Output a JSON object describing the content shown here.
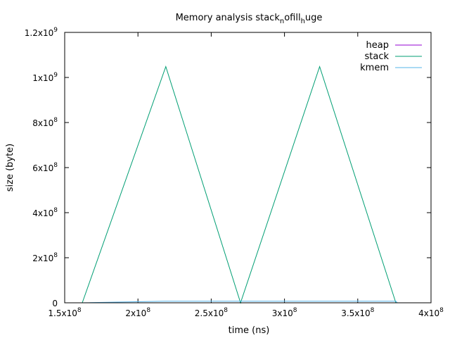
{
  "chart_data": {
    "type": "line",
    "title": {
      "main": "Memory analysis stack",
      "parts": [
        {
          "text": "Memory analysis stack",
          "shift": "base"
        },
        {
          "text": "n",
          "shift": "sub"
        },
        {
          "text": "ofill",
          "shift": "base"
        },
        {
          "text": "h",
          "shift": "sub"
        },
        {
          "text": "uge",
          "shift": "base"
        }
      ]
    },
    "xlabel": "time (ns)",
    "ylabel": "size (byte)",
    "xlim": [
      150000000,
      400000000
    ],
    "ylim": [
      0,
      1200000000
    ],
    "x_ticks": [
      {
        "value": 150000000,
        "mantissa": "1.5x10",
        "exp": "8"
      },
      {
        "value": 200000000,
        "mantissa": "2x10",
        "exp": "8"
      },
      {
        "value": 250000000,
        "mantissa": "2.5x10",
        "exp": "8"
      },
      {
        "value": 300000000,
        "mantissa": "3x10",
        "exp": "8"
      },
      {
        "value": 350000000,
        "mantissa": "3.5x10",
        "exp": "8"
      },
      {
        "value": 400000000,
        "mantissa": "4x10",
        "exp": "8"
      }
    ],
    "y_ticks": [
      {
        "value": 0,
        "mantissa": "0",
        "exp": ""
      },
      {
        "value": 200000000,
        "mantissa": "2x10",
        "exp": "8"
      },
      {
        "value": 400000000,
        "mantissa": "4x10",
        "exp": "8"
      },
      {
        "value": 600000000,
        "mantissa": "6x10",
        "exp": "8"
      },
      {
        "value": 800000000,
        "mantissa": "8x10",
        "exp": "8"
      },
      {
        "value": 1000000000,
        "mantissa": "1x10",
        "exp": "9"
      },
      {
        "value": 1200000000,
        "mantissa": "1.2x10",
        "exp": "9"
      }
    ],
    "grid": false,
    "legend_position": "top-right",
    "series": [
      {
        "name": "heap",
        "color": "#9400d3",
        "points": [
          [
            162000000,
            0
          ],
          [
            377000000,
            0
          ]
        ]
      },
      {
        "name": "stack",
        "color": "#009e73",
        "points": [
          [
            162000000,
            0
          ],
          [
            219000000,
            1048000000
          ],
          [
            270000000,
            0
          ],
          [
            324000000,
            1048000000
          ],
          [
            376000000,
            0
          ]
        ]
      },
      {
        "name": "kmem",
        "color": "#56b4e9",
        "points": [
          [
            162000000,
            0
          ],
          [
            218000000,
            7000000
          ],
          [
            270000000,
            7000000
          ],
          [
            376000000,
            7000000
          ],
          [
            377000000,
            0
          ]
        ]
      }
    ]
  }
}
